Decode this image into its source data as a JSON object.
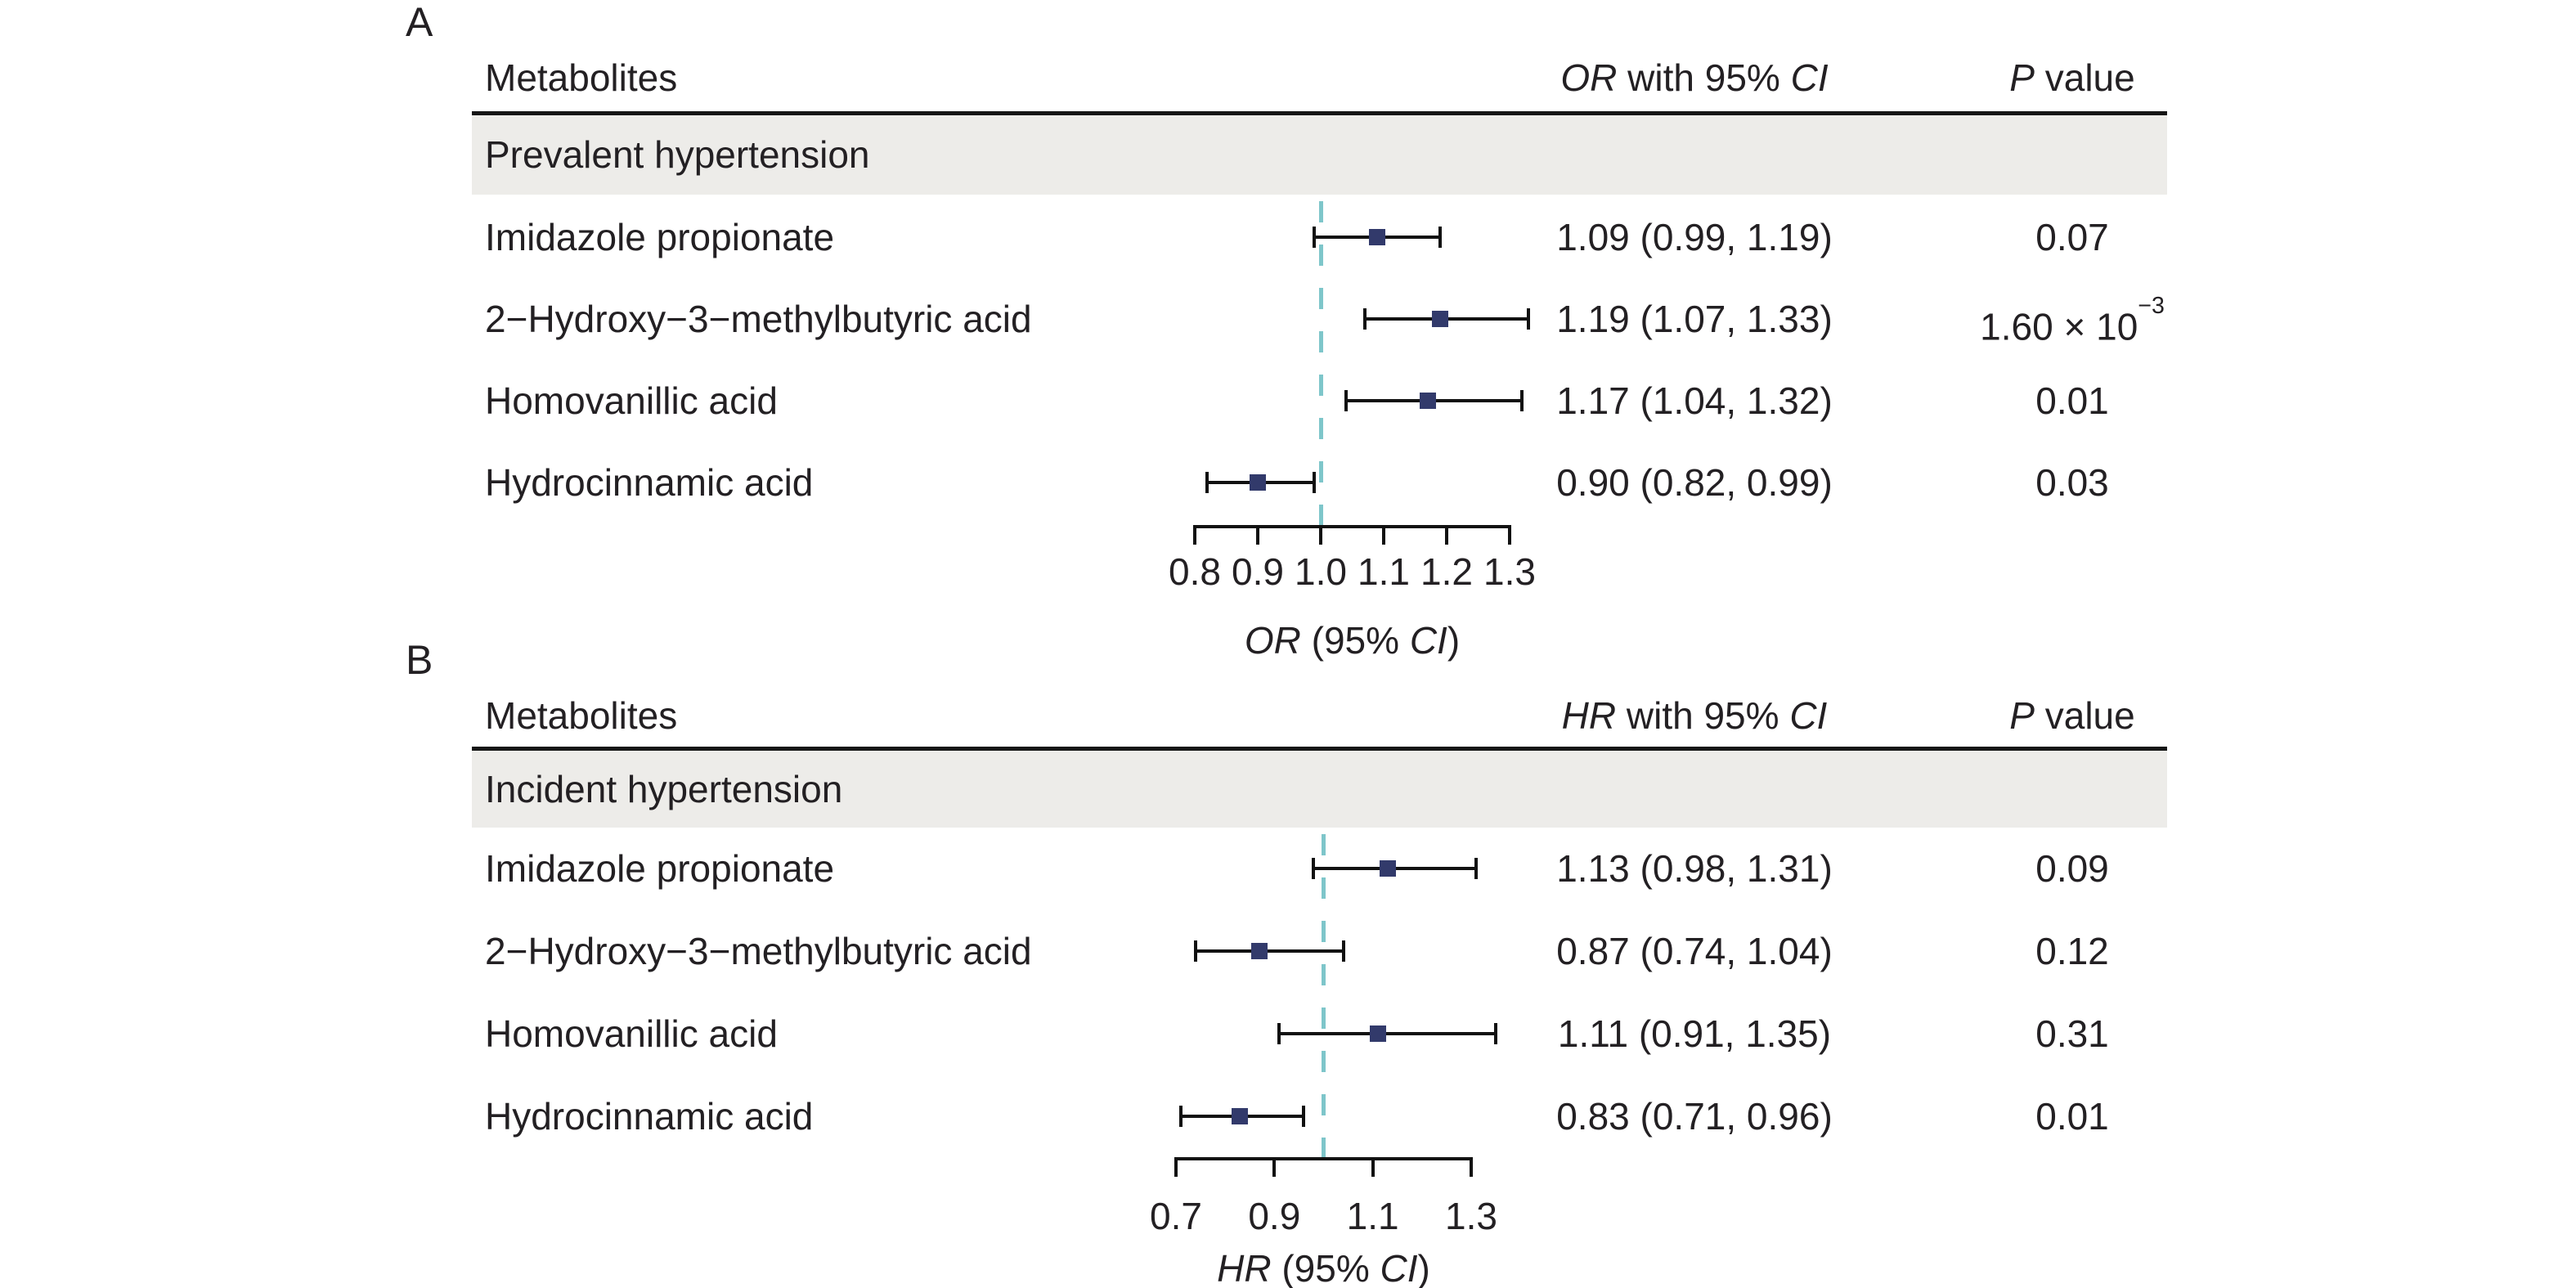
{
  "colors": {
    "marker": "#323a6b",
    "ref_line": "#7ec6ca",
    "band": "#edece9",
    "rule": "#161616",
    "text": "#232023",
    "ci_line": "#111111"
  },
  "chart_data": [
    {
      "type": "scatter",
      "subtype": "forest-plot",
      "panel": "A",
      "title": "Prevalent hypertension",
      "effect_measure": "OR",
      "categories": [
        "Imidazole propionate",
        "2−Hydroxy−3−methylbutyric acid",
        "Homovanillic acid",
        "Hydrocinnamic acid"
      ],
      "estimates": [
        1.09,
        1.19,
        1.17,
        0.9
      ],
      "ci_low": [
        0.99,
        1.07,
        1.04,
        0.82
      ],
      "ci_high": [
        1.19,
        1.33,
        1.32,
        0.99
      ],
      "effect_labels": [
        "1.09 (0.99, 1.19)",
        "1.19 (1.07, 1.33)",
        "1.17 (1.04, 1.32)",
        "0.90 (0.82, 0.99)"
      ],
      "p_values": [
        "0.07",
        "1.60 × 10⁻³",
        "0.01",
        "0.03"
      ],
      "xlabel": "OR (95% CI)",
      "xlim": [
        0.8,
        1.3
      ],
      "xticks": [
        0.8,
        0.9,
        1.0,
        1.1,
        1.2,
        1.3
      ],
      "ref_line": 1.0,
      "grid": false,
      "legend": false
    },
    {
      "type": "scatter",
      "subtype": "forest-plot",
      "panel": "B",
      "title": "Incident hypertension",
      "effect_measure": "HR",
      "categories": [
        "Imidazole propionate",
        "2−Hydroxy−3−methylbutyric acid",
        "Homovanillic acid",
        "Hydrocinnamic acid"
      ],
      "estimates": [
        1.13,
        0.87,
        1.11,
        0.83
      ],
      "ci_low": [
        0.98,
        0.74,
        0.91,
        0.71
      ],
      "ci_high": [
        1.31,
        1.04,
        1.35,
        0.96
      ],
      "effect_labels": [
        "1.13 (0.98, 1.31)",
        "0.87 (0.74, 1.04)",
        "1.11 (0.91, 1.35)",
        "0.83 (0.71, 0.96)"
      ],
      "p_values": [
        "0.09",
        "0.12",
        "0.31",
        "0.01"
      ],
      "xlabel": "HR (95% CI)",
      "xlim": [
        0.7,
        1.3
      ],
      "xticks": [
        0.7,
        0.9,
        1.1,
        1.3
      ],
      "ref_line": 1.0,
      "grid": false,
      "legend": false
    }
  ],
  "ui": {
    "panels": [
      {
        "label": "A",
        "metabolites_header": "Metabolites",
        "effect_header": [
          {
            "t": "OR",
            "italic": true
          },
          {
            "t": " with 95% "
          },
          {
            "t": "CI",
            "italic": true
          }
        ],
        "p_header": [
          {
            "t": "P",
            "italic": true
          },
          {
            "t": " value"
          }
        ],
        "group_label": "Prevalent hypertension",
        "rows": [
          {
            "name": "Imidazole propionate",
            "effect": "1.09 (0.99, 1.19)",
            "p": [
              {
                "t": "0.07"
              }
            ]
          },
          {
            "name": "2−Hydroxy−3−methylbutyric acid",
            "effect": "1.19 (1.07, 1.33)",
            "p": [
              {
                "t": "1.60 × 10"
              },
              {
                "t": "−3",
                "sup": true
              }
            ]
          },
          {
            "name": "Homovanillic acid",
            "effect": "1.17 (1.04, 1.32)",
            "p": [
              {
                "t": "0.01"
              }
            ]
          },
          {
            "name": "Hydrocinnamic acid",
            "effect": "0.90 (0.82, 0.99)",
            "p": [
              {
                "t": "0.03"
              }
            ]
          }
        ],
        "axis_tick_labels": [
          "0.8",
          "0.9",
          "1.0",
          "1.1",
          "1.2",
          "1.3"
        ],
        "axis_label": [
          {
            "t": "OR",
            "italic": true
          },
          {
            "t": " (95% "
          },
          {
            "t": "CI",
            "italic": true
          },
          {
            "t": ")"
          }
        ]
      },
      {
        "label": "B",
        "metabolites_header": "Metabolites",
        "effect_header": [
          {
            "t": "HR",
            "italic": true
          },
          {
            "t": " with 95% "
          },
          {
            "t": "CI",
            "italic": true
          }
        ],
        "p_header": [
          {
            "t": "P",
            "italic": true
          },
          {
            "t": " value"
          }
        ],
        "group_label": "Incident hypertension",
        "rows": [
          {
            "name": "Imidazole propionate",
            "effect": "1.13 (0.98, 1.31)",
            "p": [
              {
                "t": "0.09"
              }
            ]
          },
          {
            "name": "2−Hydroxy−3−methylbutyric acid",
            "effect": "0.87 (0.74, 1.04)",
            "p": [
              {
                "t": "0.12"
              }
            ]
          },
          {
            "name": "Homovanillic acid",
            "effect": "1.11 (0.91, 1.35)",
            "p": [
              {
                "t": "0.31"
              }
            ]
          },
          {
            "name": "Hydrocinnamic acid",
            "effect": "0.83 (0.71, 0.96)",
            "p": [
              {
                "t": "0.01"
              }
            ]
          }
        ],
        "axis_tick_labels": [
          "0.7",
          "0.9",
          "1.1",
          "1.3"
        ],
        "axis_label": [
          {
            "t": "HR",
            "italic": true
          },
          {
            "t": " (95% "
          },
          {
            "t": "CI",
            "italic": true
          },
          {
            "t": ")"
          }
        ]
      }
    ]
  }
}
